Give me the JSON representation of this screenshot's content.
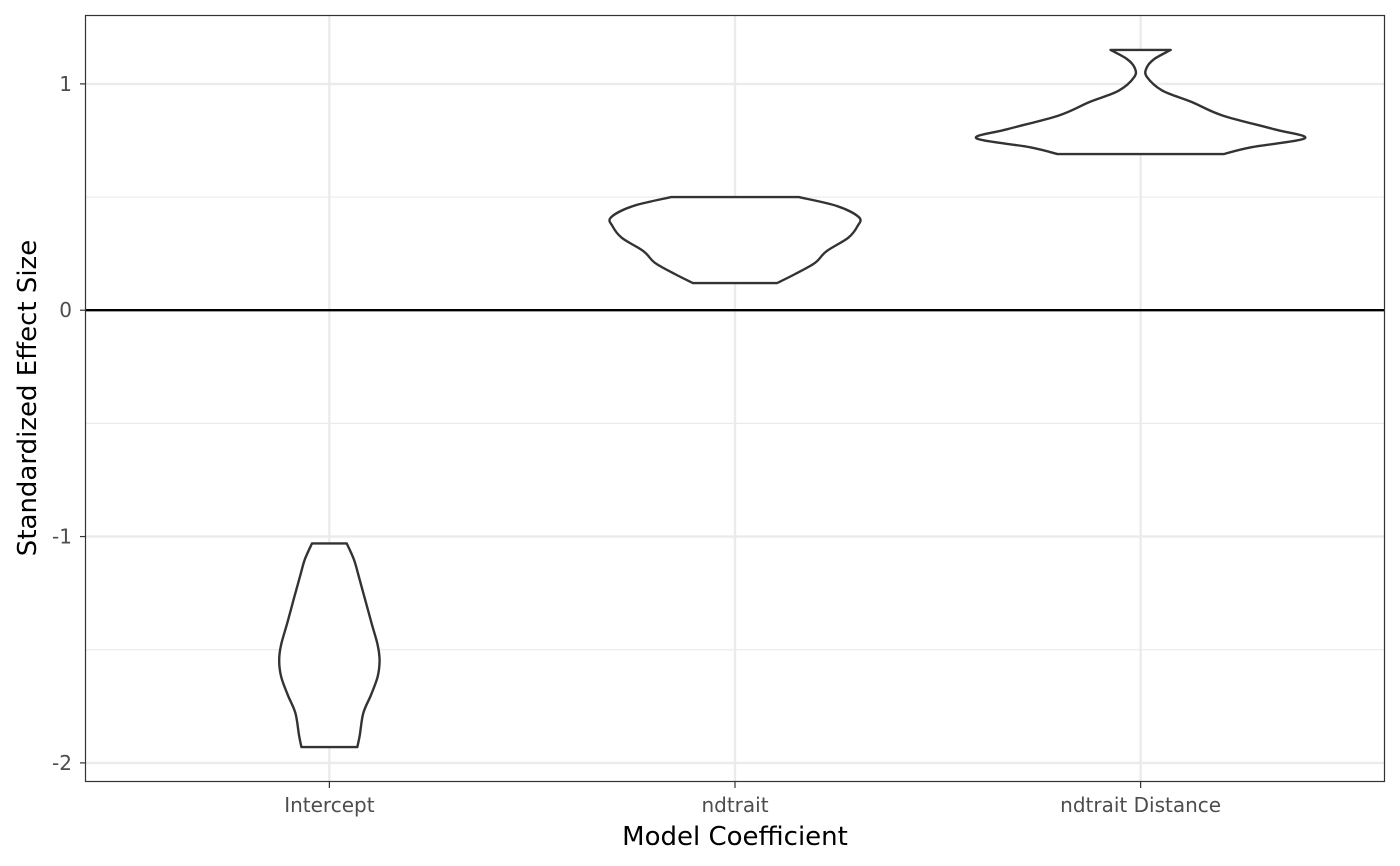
{
  "chart_data": {
    "type": "violin",
    "xlabel": "Model Coefficient",
    "ylabel": "Standardized Effect Size",
    "categories": [
      "Intercept",
      "ndtrait",
      "ndtrait Distance"
    ],
    "ylim": [
      -2.08,
      1.3
    ],
    "yticks": [
      -2,
      -1,
      0,
      1
    ],
    "ytick_labels": [
      "-2",
      "-1",
      "0",
      "1"
    ],
    "reference_line_y": 0,
    "grid": true,
    "colors": {
      "outline": "#333333",
      "grid": "#ebebeb",
      "reference": "#000000",
      "panel_border": "#333333"
    },
    "violins": [
      {
        "category": "Intercept",
        "min": -1.93,
        "max": -1.03,
        "profile": [
          [
            -1.93,
            0.153
          ],
          [
            -1.88,
            0.166
          ],
          [
            -1.78,
            0.186
          ],
          [
            -1.7,
            0.228
          ],
          [
            -1.62,
            0.264
          ],
          [
            -1.55,
            0.275
          ],
          [
            -1.48,
            0.265
          ],
          [
            -1.38,
            0.23
          ],
          [
            -1.27,
            0.193
          ],
          [
            -1.17,
            0.159
          ],
          [
            -1.1,
            0.134
          ],
          [
            -1.03,
            0.095
          ]
        ]
      },
      {
        "category": "ndtrait",
        "min": 0.12,
        "max": 0.5,
        "profile": [
          [
            0.12,
            0.23
          ],
          [
            0.16,
            0.33
          ],
          [
            0.21,
            0.44
          ],
          [
            0.26,
            0.5
          ],
          [
            0.32,
            0.62
          ],
          [
            0.37,
            0.67
          ],
          [
            0.41,
            0.68
          ],
          [
            0.46,
            0.56
          ],
          [
            0.5,
            0.35
          ]
        ]
      },
      {
        "category": "ndtrait Distance",
        "min": 0.69,
        "max": 1.15,
        "profile": [
          [
            0.69,
            0.455
          ],
          [
            0.72,
            0.605
          ],
          [
            0.76,
            0.9
          ],
          [
            0.8,
            0.73
          ],
          [
            0.86,
            0.45
          ],
          [
            0.92,
            0.28
          ],
          [
            0.97,
            0.12
          ],
          [
            1.03,
            0.035
          ],
          [
            1.07,
            0.032
          ],
          [
            1.11,
            0.075
          ],
          [
            1.15,
            0.165
          ]
        ]
      }
    ]
  }
}
